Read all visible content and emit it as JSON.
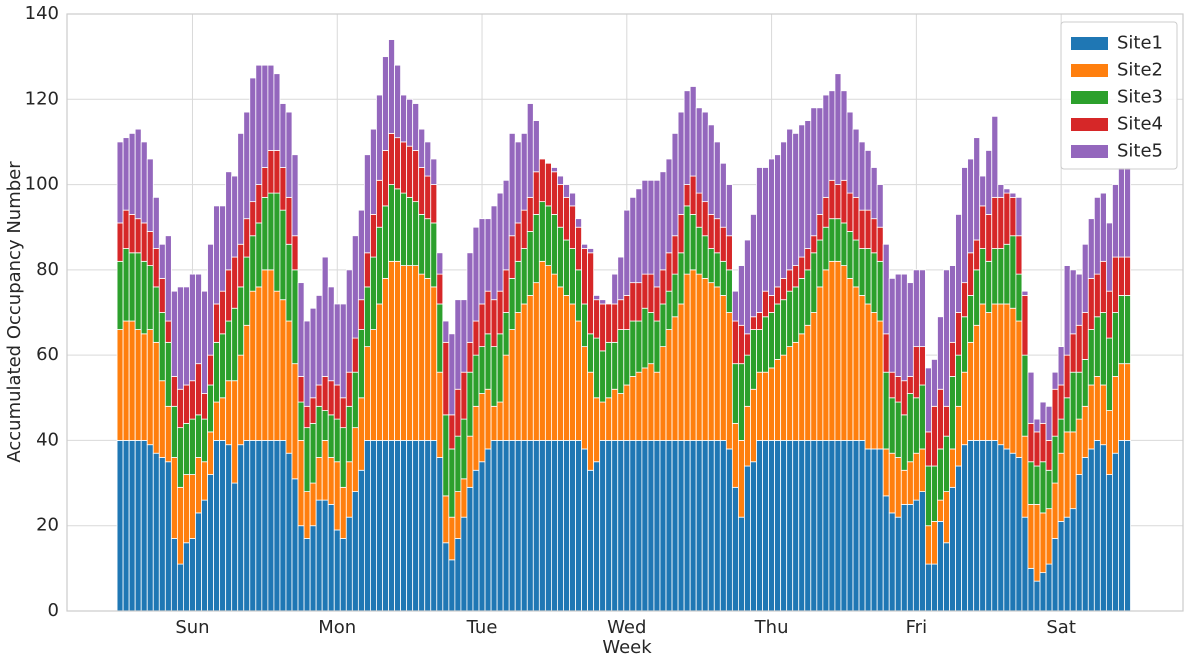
{
  "chart_data": {
    "type": "bar",
    "stacked": true,
    "xlabel": "Week",
    "ylabel": "Accumulated Occupancy Number",
    "x": [
      0,
      1,
      2,
      3,
      4,
      5,
      6,
      7,
      8,
      9,
      10,
      11,
      12,
      13,
      14,
      15,
      16,
      17,
      18,
      19,
      20,
      21,
      22,
      23,
      24,
      25,
      26,
      27,
      28,
      29,
      30,
      31,
      32,
      33,
      34,
      35,
      36,
      37,
      38,
      39,
      40,
      41,
      42,
      43,
      44,
      45,
      46,
      47,
      48,
      49,
      50,
      51,
      52,
      53,
      54,
      55,
      56,
      57,
      58,
      59,
      60,
      61,
      62,
      63,
      64,
      65,
      66,
      67,
      68,
      69,
      70,
      71,
      72,
      73,
      74,
      75,
      76,
      77,
      78,
      79,
      80,
      81,
      82,
      83,
      84,
      85,
      86,
      87,
      88,
      89,
      90,
      91,
      92,
      93,
      94,
      95,
      96,
      97,
      98,
      99,
      100,
      101,
      102,
      103,
      104,
      105,
      106,
      107,
      108,
      109,
      110,
      111,
      112,
      113,
      114,
      115,
      116,
      117,
      118,
      119,
      120,
      121,
      122,
      123,
      124,
      125,
      126,
      127,
      128,
      129,
      130,
      131,
      132,
      133,
      134,
      135,
      136,
      137,
      138,
      139,
      140,
      141,
      142,
      143,
      144,
      145,
      146,
      147,
      148,
      149,
      150,
      151,
      152,
      153,
      154,
      155,
      156,
      157,
      158,
      159,
      160,
      161,
      162,
      163,
      164,
      165,
      166,
      167
    ],
    "series": [
      {
        "name": "Site1",
        "color": "#1f77b4",
        "values": [
          40,
          40,
          40,
          40,
          40,
          39,
          37,
          36,
          35,
          17,
          11,
          16,
          17,
          23,
          26,
          32,
          40,
          40,
          39,
          30,
          39,
          40,
          40,
          40,
          40,
          40,
          40,
          40,
          37,
          31,
          20,
          17,
          20,
          26,
          26,
          25,
          19,
          17,
          22,
          28,
          33,
          40,
          40,
          40,
          40,
          40,
          40,
          40,
          40,
          40,
          40,
          40,
          40,
          36,
          16,
          12,
          17,
          22,
          29,
          33,
          35,
          38,
          40,
          40,
          40,
          40,
          40,
          40,
          40,
          40,
          40,
          40,
          40,
          40,
          40,
          40,
          40,
          38,
          33,
          35,
          40,
          40,
          40,
          40,
          40,
          40,
          40,
          40,
          40,
          40,
          40,
          40,
          40,
          40,
          40,
          40,
          40,
          40,
          40,
          40,
          40,
          38,
          29,
          22,
          34,
          35,
          40,
          40,
          40,
          40,
          40,
          40,
          40,
          40,
          40,
          40,
          40,
          40,
          40,
          40,
          40,
          40,
          40,
          40,
          38,
          38,
          38,
          27,
          23,
          22,
          25,
          25,
          26,
          28,
          11,
          11,
          21,
          16,
          29,
          34,
          39,
          40,
          40,
          40,
          40,
          40,
          39,
          38,
          37,
          36,
          22,
          10,
          7,
          9,
          11,
          17,
          21,
          22,
          24,
          32,
          36,
          38,
          40,
          39,
          32,
          37,
          40,
          40
        ]
      },
      {
        "name": "Site2",
        "color": "#ff7f0e",
        "values": [
          26,
          28,
          28,
          26,
          25,
          27,
          26,
          18,
          13,
          19,
          18,
          16,
          15,
          13,
          9,
          10,
          9,
          10,
          15,
          24,
          21,
          27,
          35,
          36,
          40,
          40,
          35,
          33,
          31,
          27,
          20,
          11,
          10,
          10,
          14,
          11,
          16,
          12,
          13,
          15,
          17,
          22,
          26,
          32,
          38,
          42,
          42,
          41,
          41,
          41,
          39,
          38,
          36,
          20,
          11,
          10,
          11,
          9,
          12,
          15,
          16,
          14,
          8,
          9,
          20,
          26,
          30,
          32,
          34,
          37,
          42,
          41,
          39,
          36,
          34,
          32,
          28,
          24,
          23,
          15,
          9,
          10,
          12,
          11,
          13,
          15,
          16,
          17,
          18,
          16,
          22,
          26,
          29,
          32,
          39,
          40,
          39,
          38,
          37,
          36,
          34,
          32,
          15,
          18,
          14,
          17,
          16,
          16,
          17,
          19,
          20,
          22,
          23,
          25,
          27,
          30,
          36,
          40,
          42,
          42,
          41,
          38,
          36,
          34,
          34,
          32,
          30,
          11,
          14,
          14,
          8,
          10,
          11,
          10,
          9,
          10,
          5,
          12,
          9,
          14,
          17,
          23,
          27,
          32,
          30,
          32,
          33,
          34,
          34,
          32,
          19,
          15,
          18,
          14,
          13,
          13,
          16,
          20,
          18,
          13,
          12,
          15,
          15,
          14,
          15,
          18,
          18,
          18
        ]
      },
      {
        "name": "Site3",
        "color": "#2ca02c",
        "values": [
          16,
          17,
          16,
          18,
          17,
          15,
          13,
          16,
          15,
          12,
          14,
          12,
          13,
          10,
          10,
          11,
          14,
          15,
          14,
          17,
          16,
          16,
          13,
          15,
          17,
          18,
          23,
          21,
          18,
          22,
          9,
          15,
          14,
          12,
          7,
          10,
          10,
          14,
          13,
          13,
          16,
          14,
          17,
          18,
          17,
          18,
          17,
          17,
          16,
          15,
          14,
          14,
          15,
          16,
          19,
          16,
          13,
          14,
          15,
          12,
          11,
          13,
          14,
          16,
          10,
          12,
          12,
          13,
          15,
          16,
          14,
          14,
          14,
          14,
          13,
          13,
          12,
          10,
          9,
          14,
          12,
          13,
          11,
          15,
          13,
          13,
          12,
          14,
          12,
          12,
          10,
          9,
          10,
          12,
          16,
          13,
          11,
          10,
          8,
          8,
          8,
          10,
          14,
          18,
          12,
          14,
          10,
          13,
          13,
          13,
          13,
          13,
          13,
          13,
          13,
          14,
          11,
          10,
          10,
          10,
          10,
          11,
          11,
          11,
          13,
          14,
          14,
          18,
          13,
          13,
          13,
          16,
          13,
          15,
          14,
          13,
          12,
          13,
          17,
          12,
          13,
          11,
          13,
          13,
          12,
          13,
          13,
          14,
          17,
          11,
          19,
          10,
          9,
          12,
          9,
          11,
          8,
          8,
          14,
          11,
          11,
          13,
          14,
          17,
          17,
          15,
          16,
          16
        ]
      },
      {
        "name": "Site4",
        "color": "#d62728",
        "values": [
          9,
          9,
          9,
          8,
          9,
          8,
          9,
          8,
          5,
          7,
          9,
          9,
          9,
          12,
          6,
          7,
          9,
          10,
          12,
          12,
          10,
          9,
          8,
          9,
          7,
          10,
          10,
          10,
          11,
          8,
          6,
          5,
          6,
          5,
          8,
          8,
          8,
          7,
          8,
          8,
          7,
          8,
          10,
          11,
          13,
          12,
          12,
          12,
          12,
          12,
          11,
          10,
          9,
          7,
          17,
          8,
          11,
          11,
          7,
          8,
          10,
          10,
          11,
          10,
          10,
          10,
          9,
          9,
          8,
          10,
          10,
          10,
          10,
          10,
          10,
          10,
          10,
          13,
          19,
          9,
          11,
          9,
          9,
          7,
          8,
          9,
          9,
          8,
          9,
          8,
          8,
          9,
          9,
          9,
          5,
          9,
          8,
          8,
          8,
          8,
          8,
          8,
          10,
          9,
          5,
          3,
          4,
          6,
          4,
          4,
          5,
          5,
          5,
          5,
          5,
          4,
          6,
          7,
          9,
          8,
          10,
          9,
          10,
          9,
          9,
          8,
          8,
          9,
          6,
          6,
          8,
          4,
          12,
          9,
          8,
          14,
          14,
          7,
          8,
          10,
          8,
          10,
          7,
          10,
          11,
          12,
          12,
          12,
          9,
          9,
          14,
          9,
          8,
          9,
          7,
          11,
          8,
          10,
          9,
          11,
          11,
          12,
          10,
          12,
          11,
          13,
          9,
          9
        ]
      },
      {
        "name": "Site5",
        "color": "#9467bd",
        "values": [
          19,
          17,
          19,
          21,
          19,
          17,
          12,
          8,
          20,
          20,
          24,
          23,
          25,
          21,
          24,
          26,
          23,
          20,
          23,
          19,
          26,
          25,
          29,
          28,
          24,
          20,
          18,
          15,
          20,
          19,
          22,
          20,
          21,
          21,
          28,
          22,
          19,
          22,
          24,
          24,
          21,
          23,
          20,
          20,
          22,
          22,
          17,
          11,
          11,
          11,
          9,
          8,
          6,
          5,
          5,
          19,
          21,
          17,
          21,
          22,
          20,
          17,
          22,
          23,
          21,
          24,
          19,
          18,
          22,
          12,
          0,
          0,
          1,
          2,
          3,
          3,
          2,
          1,
          1,
          1,
          1,
          0,
          7,
          10,
          20,
          20,
          22,
          22,
          22,
          25,
          23,
          22,
          24,
          24,
          22,
          21,
          20,
          21,
          21,
          18,
          15,
          12,
          7,
          14,
          22,
          24,
          34,
          29,
          32,
          31,
          32,
          33,
          31,
          31,
          30,
          30,
          25,
          24,
          21,
          26,
          21,
          19,
          16,
          16,
          14,
          12,
          10,
          21,
          22,
          24,
          25,
          22,
          18,
          18,
          15,
          11,
          17,
          32,
          18,
          23,
          27,
          22,
          24,
          7,
          15,
          19,
          3,
          1,
          1,
          9,
          1,
          12,
          3,
          5,
          8,
          4,
          9,
          21,
          15,
          12,
          16,
          14,
          18,
          16,
          16,
          17,
          21,
          21
        ]
      }
    ],
    "xlim": [
      -8.8,
      176.2
    ],
    "xticks": [
      {
        "value": 12,
        "label": "Sun"
      },
      {
        "value": 36,
        "label": "Mon"
      },
      {
        "value": 60,
        "label": "Tue"
      },
      {
        "value": 84,
        "label": "Wed"
      },
      {
        "value": 108,
        "label": "Thu"
      },
      {
        "value": 132,
        "label": "Fri"
      },
      {
        "value": 156,
        "label": "Sat"
      }
    ],
    "ylim": [
      0,
      140
    ],
    "yticks": [
      0,
      20,
      40,
      60,
      80,
      100,
      120,
      140
    ],
    "grid": true,
    "legend": "upper right"
  }
}
